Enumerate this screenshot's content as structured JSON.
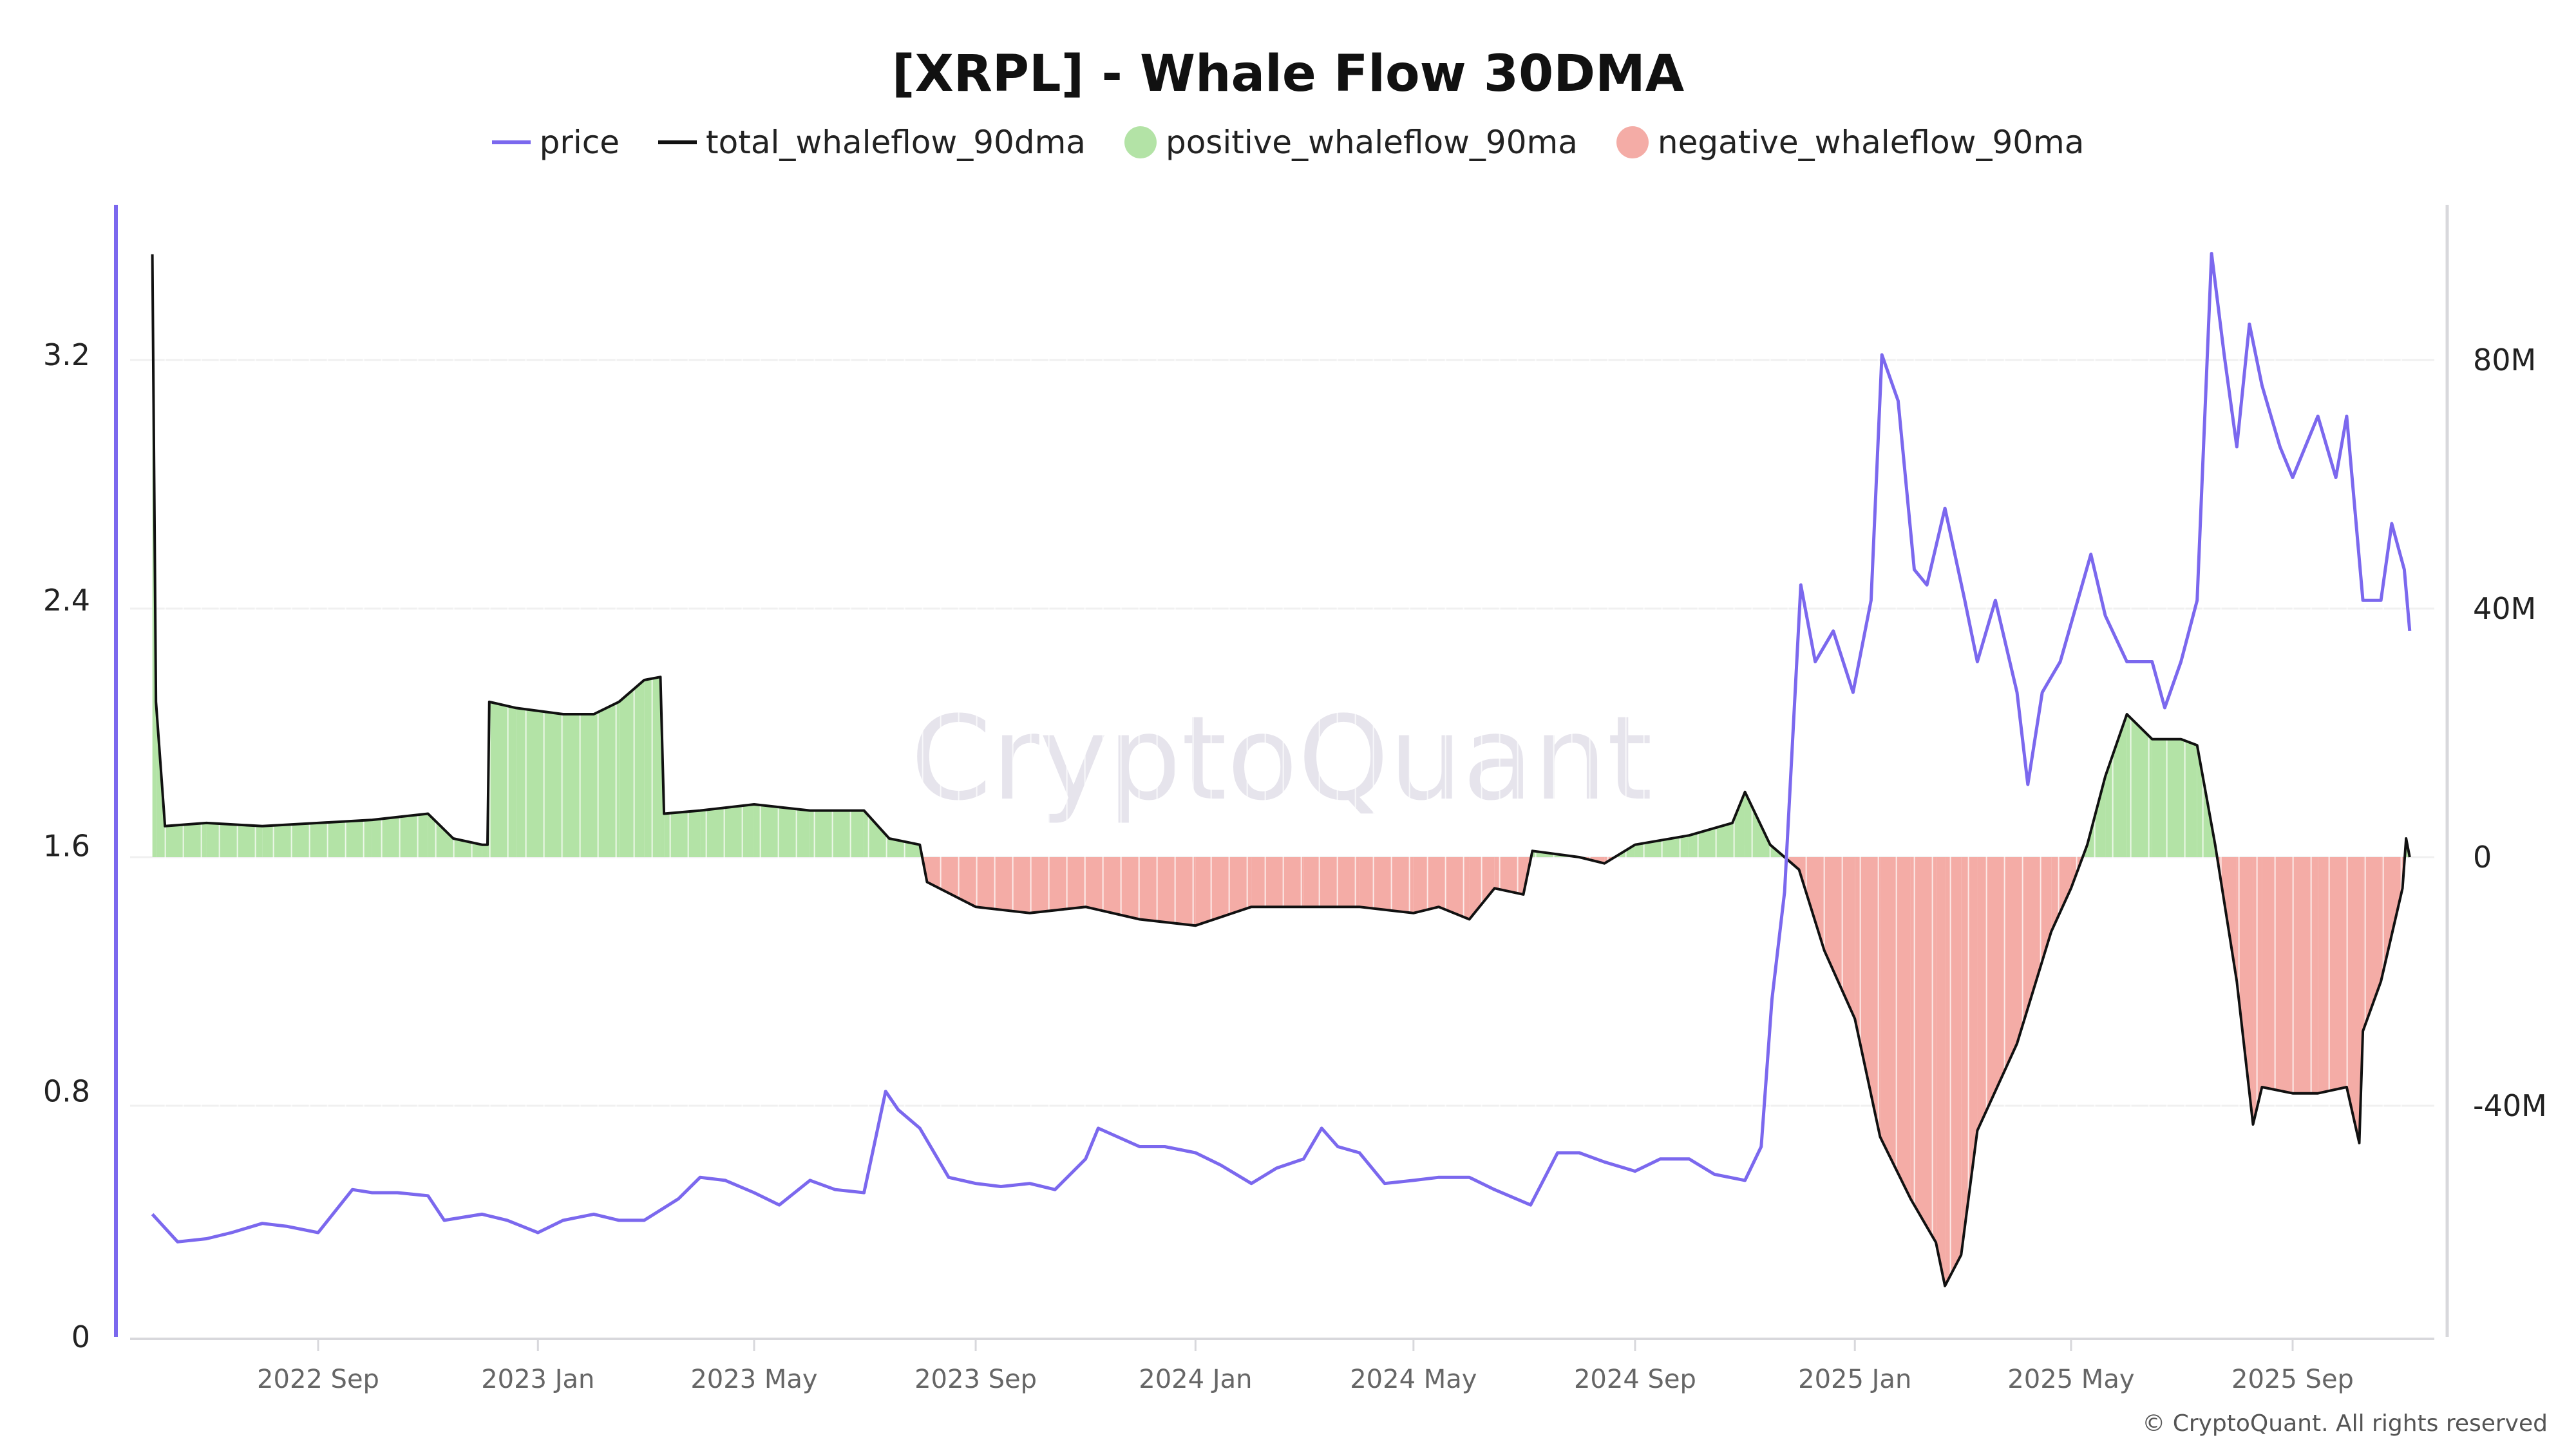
{
  "chart_data": {
    "type": "line",
    "title": "[XRPL] - Whale Flow 30DMA",
    "watermark": "CryptoQuant",
    "copyright": "© CryptoQuant. All rights reserved",
    "legend_placement": "top-center",
    "grid": true,
    "colors": {
      "price": "#7b68ee",
      "total": "#111111",
      "positive": "#b3e3a6",
      "negative": "#f4aca6",
      "left_axis": "#7b68ee"
    },
    "legend": [
      {
        "name": "price",
        "marker": "line",
        "color": "#7b68ee"
      },
      {
        "name": "total_whaleflow_90dma",
        "marker": "line",
        "color": "#111111"
      },
      {
        "name": "positive_whaleflow_90ma",
        "marker": "dot",
        "color": "#b3e3a6"
      },
      {
        "name": "negative_whaleflow_90ma",
        "marker": "dot",
        "color": "#f4aca6"
      }
    ],
    "x_ticks": [
      "2022 Sep",
      "2023 Jan",
      "2023 May",
      "2023 Sep",
      "2024 Jan",
      "2024 May",
      "2024 Sep",
      "2025 Jan",
      "2025 May",
      "2025 Sep"
    ],
    "x_tick_dates": [
      "2022-09-01",
      "2023-01-01",
      "2023-05-01",
      "2023-09-01",
      "2024-01-01",
      "2024-05-01",
      "2024-09-01",
      "2025-01-01",
      "2025-05-01",
      "2025-09-01"
    ],
    "left_axis": {
      "ticks": [
        0,
        0.8,
        1.6,
        2.4,
        3.2
      ],
      "labels": [
        "0",
        "0.8",
        "1.6",
        "2.4",
        "3.2"
      ]
    },
    "right_axis": {
      "ticks": [
        -40,
        0,
        40,
        80
      ],
      "labels": [
        "-40M",
        "0",
        "40M",
        "80M"
      ],
      "unit": "M"
    },
    "price": [
      [
        "2022-06-01",
        0.4
      ],
      [
        "2022-06-15",
        0.31
      ],
      [
        "2022-07-01",
        0.32
      ],
      [
        "2022-07-15",
        0.34
      ],
      [
        "2022-08-01",
        0.37
      ],
      [
        "2022-08-15",
        0.36
      ],
      [
        "2022-09-01",
        0.34
      ],
      [
        "2022-09-20",
        0.48
      ],
      [
        "2022-10-01",
        0.47
      ],
      [
        "2022-10-15",
        0.47
      ],
      [
        "2022-11-01",
        0.46
      ],
      [
        "2022-11-10",
        0.38
      ],
      [
        "2022-12-01",
        0.4
      ],
      [
        "2022-12-15",
        0.38
      ],
      [
        "2023-01-01",
        0.34
      ],
      [
        "2023-01-15",
        0.38
      ],
      [
        "2023-02-01",
        0.4
      ],
      [
        "2023-02-15",
        0.38
      ],
      [
        "2023-03-01",
        0.38
      ],
      [
        "2023-03-20",
        0.45
      ],
      [
        "2023-04-01",
        0.52
      ],
      [
        "2023-04-15",
        0.51
      ],
      [
        "2023-05-01",
        0.47
      ],
      [
        "2023-05-15",
        0.43
      ],
      [
        "2023-06-01",
        0.51
      ],
      [
        "2023-06-15",
        0.48
      ],
      [
        "2023-07-01",
        0.47
      ],
      [
        "2023-07-13",
        0.8
      ],
      [
        "2023-07-20",
        0.74
      ],
      [
        "2023-08-01",
        0.68
      ],
      [
        "2023-08-17",
        0.52
      ],
      [
        "2023-09-01",
        0.5
      ],
      [
        "2023-09-15",
        0.49
      ],
      [
        "2023-10-01",
        0.5
      ],
      [
        "2023-10-15",
        0.48
      ],
      [
        "2023-11-01",
        0.58
      ],
      [
        "2023-11-08",
        0.68
      ],
      [
        "2023-12-01",
        0.62
      ],
      [
        "2023-12-15",
        0.62
      ],
      [
        "2024-01-01",
        0.6
      ],
      [
        "2024-01-15",
        0.56
      ],
      [
        "2024-02-01",
        0.5
      ],
      [
        "2024-02-15",
        0.55
      ],
      [
        "2024-03-01",
        0.58
      ],
      [
        "2024-03-11",
        0.68
      ],
      [
        "2024-03-20",
        0.62
      ],
      [
        "2024-04-01",
        0.6
      ],
      [
        "2024-04-15",
        0.5
      ],
      [
        "2024-05-01",
        0.51
      ],
      [
        "2024-05-15",
        0.52
      ],
      [
        "2024-06-01",
        0.52
      ],
      [
        "2024-06-15",
        0.48
      ],
      [
        "2024-07-05",
        0.43
      ],
      [
        "2024-07-20",
        0.6
      ],
      [
        "2024-08-01",
        0.6
      ],
      [
        "2024-08-15",
        0.57
      ],
      [
        "2024-09-01",
        0.54
      ],
      [
        "2024-09-15",
        0.58
      ],
      [
        "2024-10-01",
        0.58
      ],
      [
        "2024-10-15",
        0.53
      ],
      [
        "2024-11-01",
        0.51
      ],
      [
        "2024-11-10",
        0.62
      ],
      [
        "2024-11-16",
        1.1
      ],
      [
        "2024-11-23",
        1.45
      ],
      [
        "2024-12-02",
        2.45
      ],
      [
        "2024-12-10",
        2.2
      ],
      [
        "2024-12-20",
        2.3
      ],
      [
        "2024-12-31",
        2.1
      ],
      [
        "2025-01-10",
        2.4
      ],
      [
        "2025-01-16",
        3.2
      ],
      [
        "2025-01-25",
        3.05
      ],
      [
        "2025-02-03",
        2.5
      ],
      [
        "2025-02-10",
        2.45
      ],
      [
        "2025-02-20",
        2.7
      ],
      [
        "2025-03-03",
        2.4
      ],
      [
        "2025-03-10",
        2.2
      ],
      [
        "2025-03-20",
        2.4
      ],
      [
        "2025-04-01",
        2.1
      ],
      [
        "2025-04-07",
        1.8
      ],
      [
        "2025-04-15",
        2.1
      ],
      [
        "2025-04-25",
        2.2
      ],
      [
        "2025-05-12",
        2.55
      ],
      [
        "2025-05-20",
        2.35
      ],
      [
        "2025-06-01",
        2.2
      ],
      [
        "2025-06-15",
        2.2
      ],
      [
        "2025-06-22",
        2.05
      ],
      [
        "2025-07-01",
        2.2
      ],
      [
        "2025-07-10",
        2.4
      ],
      [
        "2025-07-18",
        3.53
      ],
      [
        "2025-07-25",
        3.2
      ],
      [
        "2025-08-01",
        2.9
      ],
      [
        "2025-08-08",
        3.3
      ],
      [
        "2025-08-15",
        3.1
      ],
      [
        "2025-08-25",
        2.9
      ],
      [
        "2025-09-01",
        2.8
      ],
      [
        "2025-09-15",
        3.0
      ],
      [
        "2025-09-25",
        2.8
      ],
      [
        "2025-10-01",
        3.0
      ],
      [
        "2025-10-10",
        2.4
      ],
      [
        "2025-10-20",
        2.4
      ],
      [
        "2025-10-26",
        2.65
      ],
      [
        "2025-11-02",
        2.5
      ],
      [
        "2025-11-05",
        2.3
      ]
    ],
    "total_whaleflow_90dma": [
      [
        "2022-06-01",
        97
      ],
      [
        "2022-06-03",
        25
      ],
      [
        "2022-06-08",
        5
      ],
      [
        "2022-07-01",
        5.5
      ],
      [
        "2022-08-01",
        5
      ],
      [
        "2022-09-01",
        5.5
      ],
      [
        "2022-10-01",
        6
      ],
      [
        "2022-11-01",
        7
      ],
      [
        "2022-11-15",
        3
      ],
      [
        "2022-12-01",
        2
      ],
      [
        "2022-12-04",
        2
      ],
      [
        "2022-12-05",
        25
      ],
      [
        "2022-12-20",
        24
      ],
      [
        "2023-01-15",
        23
      ],
      [
        "2023-02-01",
        23
      ],
      [
        "2023-02-15",
        25
      ],
      [
        "2023-03-01",
        28.5
      ],
      [
        "2023-03-10",
        29
      ],
      [
        "2023-03-12",
        7
      ],
      [
        "2023-04-01",
        7.5
      ],
      [
        "2023-05-01",
        8.5
      ],
      [
        "2023-06-01",
        7.5
      ],
      [
        "2023-07-01",
        7.5
      ],
      [
        "2023-07-15",
        3
      ],
      [
        "2023-08-01",
        2
      ],
      [
        "2023-08-05",
        -4
      ],
      [
        "2023-09-01",
        -8
      ],
      [
        "2023-10-01",
        -9
      ],
      [
        "2023-11-01",
        -8
      ],
      [
        "2023-12-01",
        -10
      ],
      [
        "2024-01-01",
        -11
      ],
      [
        "2024-02-01",
        -8
      ],
      [
        "2024-03-01",
        -8
      ],
      [
        "2024-04-01",
        -8
      ],
      [
        "2024-05-01",
        -9
      ],
      [
        "2024-05-15",
        -8
      ],
      [
        "2024-06-01",
        -10
      ],
      [
        "2024-06-15",
        -5
      ],
      [
        "2024-07-01",
        -6
      ],
      [
        "2024-07-06",
        1
      ],
      [
        "2024-08-01",
        0
      ],
      [
        "2024-08-15",
        -1
      ],
      [
        "2024-09-01",
        2
      ],
      [
        "2024-10-01",
        3.5
      ],
      [
        "2024-10-25",
        5.5
      ],
      [
        "2024-11-01",
        10.5
      ],
      [
        "2024-11-15",
        2
      ],
      [
        "2024-12-01",
        -2
      ],
      [
        "2024-12-15",
        -15
      ],
      [
        "2025-01-01",
        -26
      ],
      [
        "2025-01-15",
        -45
      ],
      [
        "2025-02-01",
        -55
      ],
      [
        "2025-02-15",
        -62
      ],
      [
        "2025-02-20",
        -69
      ],
      [
        "2025-03-01",
        -64
      ],
      [
        "2025-03-10",
        -44
      ],
      [
        "2025-04-01",
        -30
      ],
      [
        "2025-04-20",
        -12
      ],
      [
        "2025-05-01",
        -5
      ],
      [
        "2025-05-10",
        2
      ],
      [
        "2025-05-20",
        13
      ],
      [
        "2025-06-01",
        23
      ],
      [
        "2025-06-15",
        19
      ],
      [
        "2025-07-01",
        19
      ],
      [
        "2025-07-10",
        18
      ],
      [
        "2025-07-20",
        2
      ],
      [
        "2025-08-01",
        -20
      ],
      [
        "2025-08-10",
        -43
      ],
      [
        "2025-08-15",
        -37
      ],
      [
        "2025-09-01",
        -38
      ],
      [
        "2025-09-15",
        -38
      ],
      [
        "2025-10-01",
        -37
      ],
      [
        "2025-10-08",
        -46
      ],
      [
        "2025-10-10",
        -28
      ],
      [
        "2025-10-20",
        -20
      ],
      [
        "2025-11-01",
        -5
      ],
      [
        "2025-11-03",
        3
      ],
      [
        "2025-11-05",
        0
      ]
    ]
  }
}
